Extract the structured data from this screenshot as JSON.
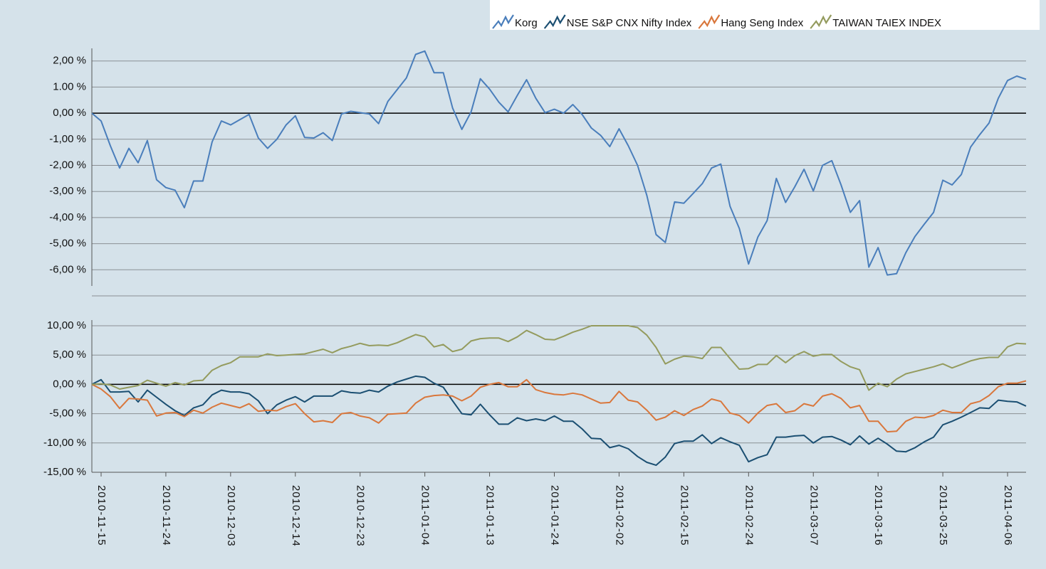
{
  "chart_data": [
    {
      "type": "line",
      "ylim": [
        -7,
        3
      ],
      "yticks": [
        {
          "value": 2,
          "label": "2,00 %"
        },
        {
          "value": 1,
          "label": "1.00 %"
        },
        {
          "value": 0,
          "label": "0,00 %"
        },
        {
          "value": -1,
          "label": "-1,00 %"
        },
        {
          "value": -2,
          "label": "-2,00 %"
        },
        {
          "value": -3,
          "label": "-3,00 %"
        },
        {
          "value": -4,
          "label": "-4,00 %"
        },
        {
          "value": -5,
          "label": "-5,00 %"
        },
        {
          "value": -6,
          "label": "-6,00 %"
        }
      ],
      "grid": true,
      "series": [
        {
          "name": "Korg",
          "color": "#4a7ebb",
          "values": [
            0,
            -0.3,
            -1.25,
            -2.1,
            -1.35,
            -1.9,
            -1.05,
            -2.55,
            -2.85,
            -2.95,
            -3.62,
            -2.6,
            -2.6,
            -1.1,
            -0.3,
            -0.45,
            -0.25,
            -0.05,
            -0.95,
            -1.35,
            -1.0,
            -0.45,
            -0.1,
            -0.93,
            -0.95,
            -0.75,
            -1.05,
            -0.03,
            0.07,
            0.02,
            -0.03,
            -0.4,
            0.45,
            0.9,
            1.35,
            2.25,
            2.38,
            1.55,
            1.55,
            0.2,
            -0.62,
            0.05,
            1.32,
            0.92,
            0.42,
            0.05,
            0.68,
            1.28,
            0.57,
            0.02,
            0.15,
            0.0,
            0.33,
            -0.05,
            -0.57,
            -0.85,
            -1.28,
            -0.6,
            -1.25,
            -2.0,
            -3.15,
            -4.65,
            -4.95,
            -3.4,
            -3.45,
            -3.08,
            -2.7,
            -2.1,
            -1.95,
            -3.57,
            -4.42,
            -5.78,
            -4.75,
            -4.12,
            -2.5,
            -3.42,
            -2.82,
            -2.15,
            -2.98,
            -2.0,
            -1.82,
            -2.75,
            -3.8,
            -3.35,
            -5.9,
            -5.15,
            -6.2,
            -6.15,
            -5.35,
            -4.72,
            -4.25,
            -3.8,
            -2.57,
            -2.75,
            -2.35,
            -1.3,
            -0.82,
            -0.38,
            0.57,
            1.25,
            1.42,
            1.3
          ]
        }
      ]
    },
    {
      "type": "line",
      "categories": [
        null,
        "2010-11-15",
        null,
        null,
        null,
        null,
        null,
        null,
        "2010-11-24",
        null,
        null,
        null,
        null,
        null,
        null,
        "2010-12-03",
        null,
        null,
        null,
        null,
        null,
        null,
        "2010-12-14",
        null,
        null,
        null,
        null,
        null,
        null,
        "2010-12-23",
        null,
        null,
        null,
        null,
        null,
        null,
        "2011-01-04",
        null,
        null,
        null,
        null,
        null,
        null,
        "2011-01-13",
        null,
        null,
        null,
        null,
        null,
        null,
        "2011-01-24",
        null,
        null,
        null,
        null,
        null,
        null,
        "2011-02-02",
        null,
        null,
        null,
        null,
        null,
        null,
        "2011-02-15",
        null,
        null,
        null,
        null,
        null,
        null,
        "2011-02-24",
        null,
        null,
        null,
        null,
        null,
        null,
        "2011-03-07",
        null,
        null,
        null,
        null,
        null,
        null,
        "2011-03-16",
        null,
        null,
        null,
        null,
        null,
        null,
        "2011-03-25",
        null,
        null,
        null,
        null,
        null,
        null,
        "2011-04-06",
        null,
        null
      ],
      "ylim": [
        -15,
        10
      ],
      "yticks": [
        {
          "value": 10,
          "label": "10,00 %"
        },
        {
          "value": 5,
          "label": "5,00 %"
        },
        {
          "value": 0,
          "label": "0,00 %"
        },
        {
          "value": -5,
          "label": "-5,00 %"
        },
        {
          "value": -10,
          "label": "-10,00 %"
        },
        {
          "value": -15,
          "label": "-15,00 %"
        }
      ],
      "grid": true,
      "series": [
        {
          "name": "NSE S&P CNX Nifty Index",
          "color": "#1b4f72",
          "values": [
            0,
            0.8,
            -1.3,
            -1.3,
            -1.2,
            -3.0,
            -1.0,
            -2.2,
            -3.4,
            -4.5,
            -5.3,
            -4.0,
            -3.5,
            -1.8,
            -1.0,
            -1.3,
            -1.3,
            -1.6,
            -2.8,
            -5.0,
            -3.5,
            -2.7,
            -2.1,
            -3.0,
            -2.0,
            -2.0,
            -2.0,
            -1.1,
            -1.4,
            -1.5,
            -1.0,
            -1.3,
            -0.3,
            0.4,
            0.9,
            1.4,
            1.2,
            0.2,
            -0.5,
            -2.8,
            -5.0,
            -5.2,
            -3.4,
            -5.2,
            -6.8,
            -6.8,
            -5.7,
            -6.2,
            -5.9,
            -6.2,
            -5.4,
            -6.3,
            -6.3,
            -7.6,
            -9.2,
            -9.3,
            -10.8,
            -10.4,
            -11.0,
            -12.3,
            -13.3,
            -13.8,
            -12.4,
            -10.1,
            -9.7,
            -9.7,
            -8.6,
            -10.1,
            -9.1,
            -9.8,
            -10.4,
            -13.2,
            -12.5,
            -12.0,
            -9.0,
            -9.0,
            -8.8,
            -8.7,
            -10.0,
            -9.0,
            -8.9,
            -9.5,
            -10.3,
            -8.8,
            -10.2,
            -9.2,
            -10.2,
            -11.4,
            -11.5,
            -10.8,
            -9.8,
            -9.0,
            -6.9,
            -6.3,
            -5.6,
            -4.8,
            -4.0,
            -4.1,
            -2.7,
            -2.9,
            -3.0,
            -3.7
          ]
        },
        {
          "name": "Hang Seng Index",
          "color": "#d9773c",
          "values": [
            0,
            -0.8,
            -2.1,
            -4.1,
            -2.4,
            -2.5,
            -2.7,
            -5.4,
            -4.9,
            -4.8,
            -5.5,
            -4.4,
            -4.9,
            -3.9,
            -3.2,
            -3.6,
            -4.0,
            -3.3,
            -4.6,
            -4.4,
            -4.5,
            -3.8,
            -3.3,
            -5.0,
            -6.4,
            -6.2,
            -6.5,
            -5.0,
            -4.8,
            -5.4,
            -5.7,
            -6.6,
            -5.1,
            -5.0,
            -4.9,
            -3.2,
            -2.2,
            -1.9,
            -1.8,
            -2.0,
            -2.8,
            -2.0,
            -0.5,
            0.0,
            0.3,
            -0.4,
            -0.4,
            0.8,
            -0.9,
            -1.4,
            -1.7,
            -1.8,
            -1.5,
            -1.8,
            -2.5,
            -3.2,
            -3.1,
            -1.2,
            -2.7,
            -3.0,
            -4.4,
            -6.1,
            -5.6,
            -4.5,
            -5.3,
            -4.3,
            -3.7,
            -2.5,
            -2.9,
            -4.9,
            -5.3,
            -6.6,
            -4.9,
            -3.6,
            -3.3,
            -4.8,
            -4.5,
            -3.3,
            -3.7,
            -2.0,
            -1.6,
            -2.4,
            -4.0,
            -3.6,
            -6.3,
            -6.3,
            -8.1,
            -8.0,
            -6.3,
            -5.6,
            -5.7,
            -5.3,
            -4.4,
            -4.8,
            -4.8,
            -3.3,
            -2.9,
            -1.9,
            -0.4,
            0.2,
            0.2,
            0.6
          ]
        },
        {
          "name": "TAIWAN TAIEX INDEX",
          "color": "#949b5e",
          "values": [
            0,
            0.1,
            -0.1,
            -0.8,
            -0.5,
            -0.2,
            0.7,
            0.2,
            -0.3,
            0.3,
            -0.1,
            0.6,
            0.7,
            2.4,
            3.2,
            3.7,
            4.7,
            4.7,
            4.7,
            5.2,
            4.9,
            5.0,
            5.1,
            5.2,
            5.6,
            6.0,
            5.4,
            6.1,
            6.5,
            7.0,
            6.6,
            6.7,
            6.6,
            7.1,
            7.8,
            8.5,
            8.1,
            6.4,
            6.8,
            5.6,
            6.0,
            7.4,
            7.8,
            7.9,
            7.9,
            7.3,
            8.1,
            9.2,
            8.5,
            7.7,
            7.6,
            8.2,
            8.9,
            9.4,
            10.0,
            10.0,
            10.0,
            10.0,
            10.0,
            9.7,
            8.4,
            6.3,
            3.5,
            4.3,
            4.8,
            4.7,
            4.4,
            6.3,
            6.3,
            4.4,
            2.6,
            2.7,
            3.4,
            3.4,
            4.9,
            3.7,
            4.9,
            5.6,
            4.8,
            5.1,
            5.1,
            3.9,
            3.0,
            2.5,
            -1.0,
            0.2,
            -0.4,
            0.9,
            1.8,
            2.2,
            2.6,
            3.0,
            3.5,
            2.8,
            3.4,
            4.0,
            4.4,
            4.6,
            4.6,
            6.4,
            7.0,
            6.9
          ]
        }
      ]
    }
  ]
}
